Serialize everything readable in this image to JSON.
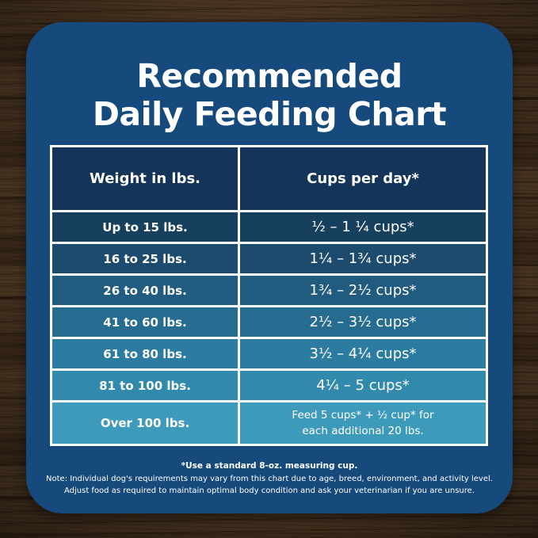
{
  "title": {
    "line1": "Recommended",
    "line2": "Daily Feeding Chart"
  },
  "table": {
    "headers": [
      "Weight in lbs.",
      "Cups per day*"
    ],
    "rows": [
      {
        "weight": "Up to 15 lbs.",
        "cups": "½ – 1 ¼ cups*"
      },
      {
        "weight": "16 to 25 lbs.",
        "cups": "1¼ – 1¾ cups*"
      },
      {
        "weight": "26 to 40 lbs.",
        "cups": "1¾ – 2½ cups*"
      },
      {
        "weight": "41 to 60 lbs.",
        "cups": "2½ – 3½ cups*"
      },
      {
        "weight": "61 to 80 lbs.",
        "cups": "3½ – 4¼ cups*"
      },
      {
        "weight": "81 to 100 lbs.",
        "cups": "4¼ – 5 cups*"
      },
      {
        "weight": "Over 100 lbs.",
        "cups": "Feed 5 cups* + ½ cup* for",
        "cups2": "each additional 20 lbs."
      }
    ],
    "row_colors": [
      "#17405F",
      "#1C4B6E",
      "#215C80",
      "#266B90",
      "#2C7BA0",
      "#3189AB",
      "#3E9ABA"
    ]
  },
  "notes": {
    "measuring_cup": "*Use a standard 8-oz. measuring cup.",
    "line1": "Note: Individual dog's requirements may vary from this chart due to age, breed, environment, and activity level.",
    "line2": "Adjust food as required to maintain optimal body condition and ask your veterinarian if you are unsure."
  },
  "colors": {
    "card_bg": "#164A7D",
    "header_bg": "#14345A",
    "table_border": "#FFFFFF",
    "text": "#FFFFFF",
    "wood_base": "#44301D"
  },
  "chart_data": {
    "type": "table",
    "title": "Recommended Daily Feeding Chart",
    "columns": [
      "Weight in lbs.",
      "Cups per day*"
    ],
    "rows": [
      [
        "Up to 15 lbs.",
        "½ – 1 ¼ cups*"
      ],
      [
        "16 to 25 lbs.",
        "1¼ – 1¾ cups*"
      ],
      [
        "26 to 40 lbs.",
        "1¾ – 2½ cups*"
      ],
      [
        "41 to 60 lbs.",
        "2½ – 3½ cups*"
      ],
      [
        "61 to 80 lbs.",
        "3½ – 4¼ cups*"
      ],
      [
        "81 to 100 lbs.",
        "4¼ – 5 cups*"
      ],
      [
        "Over 100 lbs.",
        "Feed 5 cups* + ½ cup* for each additional 20 lbs."
      ]
    ],
    "footnotes": [
      "*Use a standard 8-oz. measuring cup.",
      "Note: Individual dog's requirements may vary from this chart due to age, breed, environment, and activity level.",
      "Adjust food as required to maintain optimal body condition and ask your veterinarian if you are unsure."
    ]
  }
}
